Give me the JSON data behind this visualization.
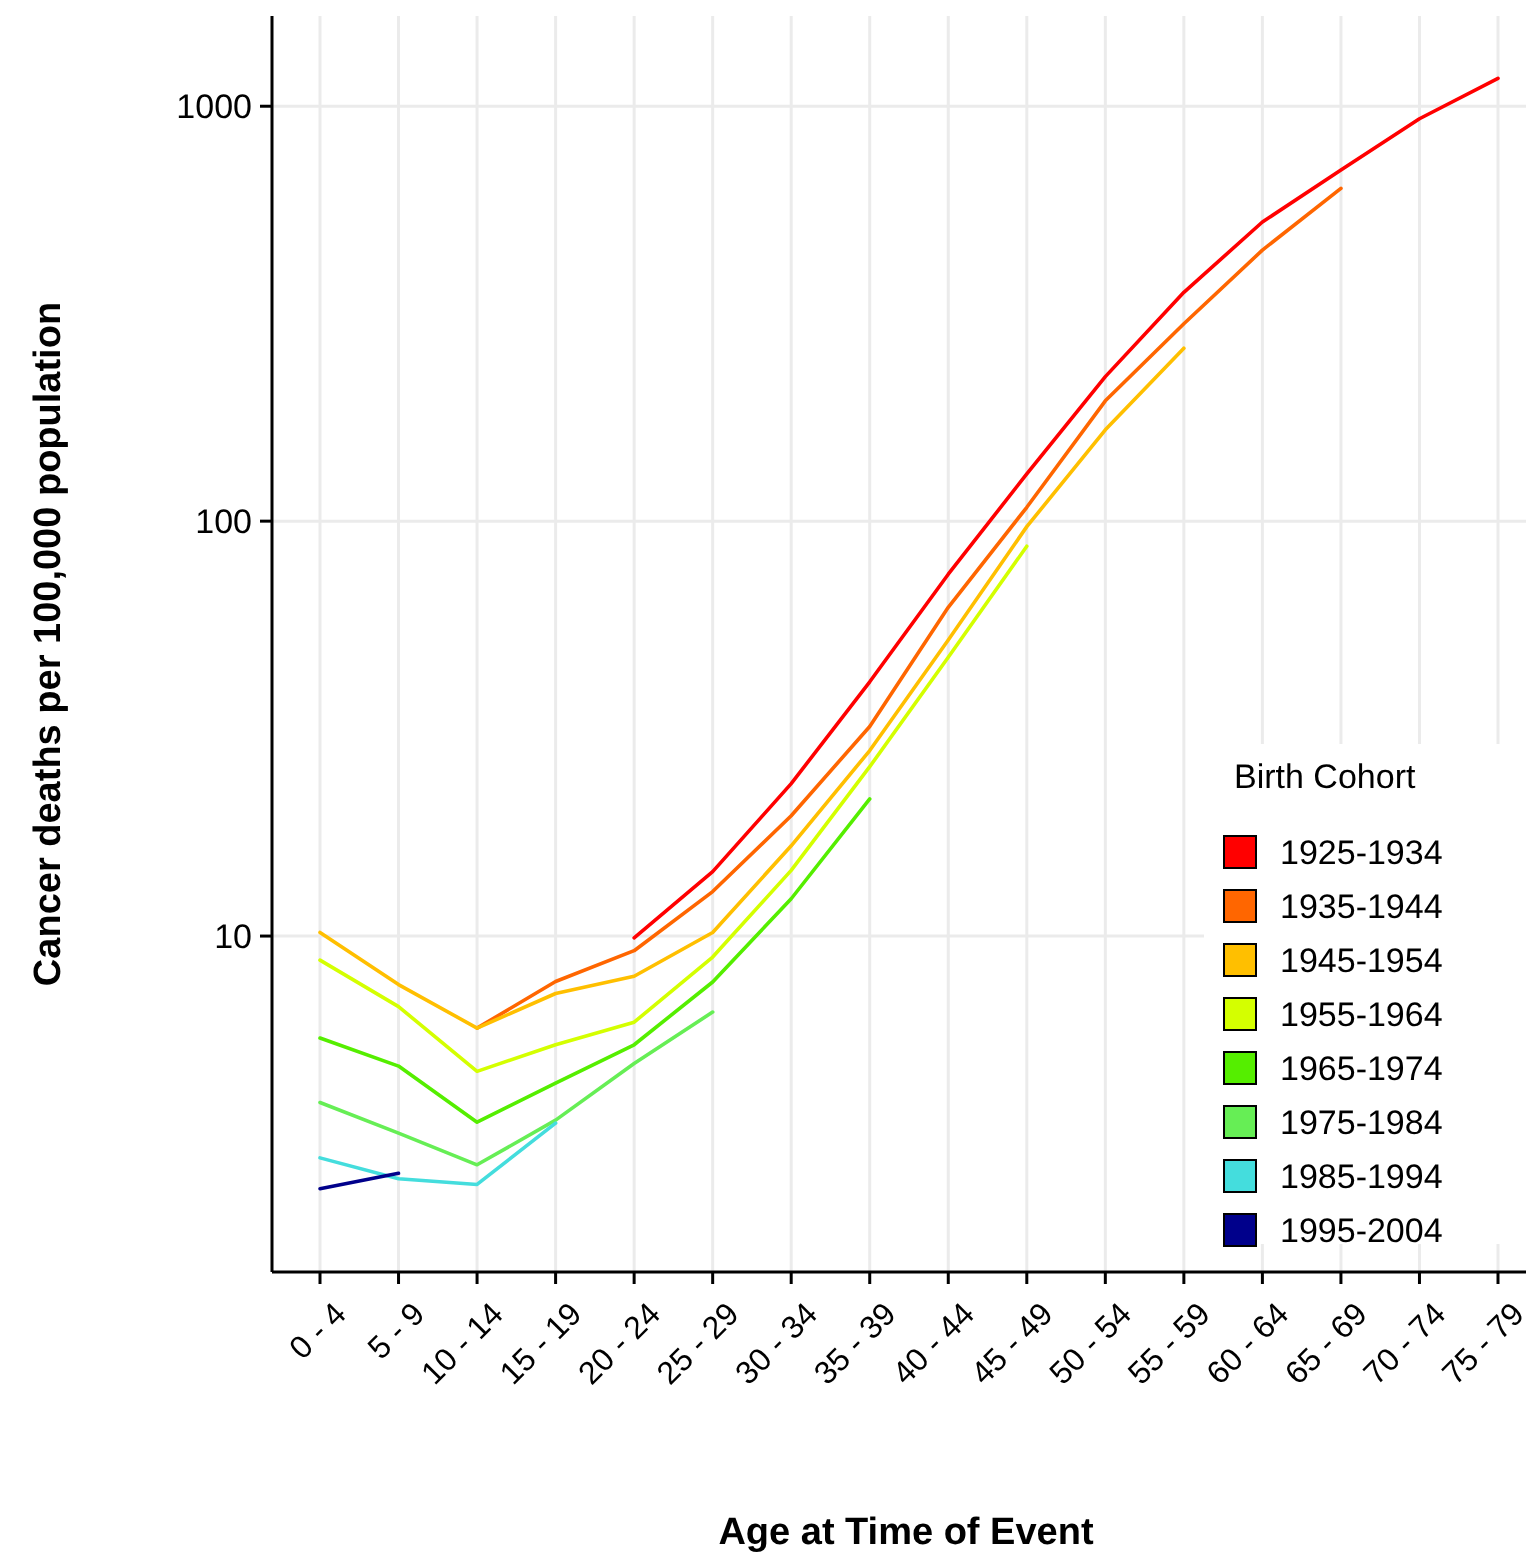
{
  "chart_data": {
    "type": "line",
    "xlabel": "Age at Time of Event",
    "ylabel": "Cancer deaths per 100,000 population",
    "legend_title": "Birth Cohort",
    "categories": [
      "0 - 4",
      "5 - 9",
      "10 - 14",
      "15 - 19",
      "20 - 24",
      "25 - 29",
      "30 - 34",
      "35 - 39",
      "40 - 44",
      "45 - 49",
      "50 - 54",
      "55 - 59",
      "60 - 64",
      "65 - 69",
      "70 - 74",
      "75 - 79"
    ],
    "log": true,
    "ylim": [
      1.55,
      1650
    ],
    "yticks": [
      10,
      100,
      1000
    ],
    "grid": true,
    "legend": "bottom right",
    "series": [
      {
        "name": "1925-1934",
        "color": "#ff0000",
        "values": [
          null,
          null,
          null,
          null,
          9.9,
          14.3,
          23.3,
          41,
          74.5,
          130,
          223,
          356,
          526,
          702,
          933,
          1167
        ]
      },
      {
        "name": "1935-1944",
        "color": "#ff6600",
        "values": [
          null,
          null,
          6.0,
          7.77,
          9.22,
          12.8,
          19.5,
          32,
          62,
          108,
          195,
          299,
          450,
          634,
          null,
          null
        ]
      },
      {
        "name": "1945-1954",
        "color": "#ffbf00",
        "values": [
          10.2,
          7.64,
          6.0,
          7.27,
          8.0,
          10.2,
          16.5,
          28,
          51.7,
          97,
          166,
          261,
          null,
          null,
          null,
          null
        ]
      },
      {
        "name": "1955-1964",
        "color": "#d4ff00",
        "values": [
          8.75,
          6.76,
          4.72,
          5.47,
          6.2,
          8.9,
          14.4,
          25.6,
          47,
          87,
          null,
          null,
          null,
          null,
          null,
          null
        ]
      },
      {
        "name": "1965-1974",
        "color": "#55ee00",
        "values": [
          5.68,
          4.86,
          3.56,
          4.42,
          5.47,
          7.75,
          12.3,
          21.4,
          null,
          null,
          null,
          null,
          null,
          null,
          null,
          null
        ]
      },
      {
        "name": "1975-1984",
        "color": "#66ee55",
        "values": [
          3.97,
          3.35,
          2.81,
          3.6,
          4.93,
          6.56,
          null,
          null,
          null,
          null,
          null,
          null,
          null,
          null,
          null,
          null
        ]
      },
      {
        "name": "1985-1994",
        "color": "#44dddd",
        "values": [
          2.92,
          2.6,
          2.52,
          3.54,
          null,
          null,
          null,
          null,
          null,
          null,
          null,
          null,
          null,
          null,
          null,
          null
        ]
      },
      {
        "name": "1995-2004",
        "color": "#00008b",
        "values": [
          2.46,
          2.68,
          null,
          null,
          null,
          null,
          null,
          null,
          null,
          null,
          null,
          null,
          null,
          null,
          null,
          null
        ]
      }
    ]
  }
}
